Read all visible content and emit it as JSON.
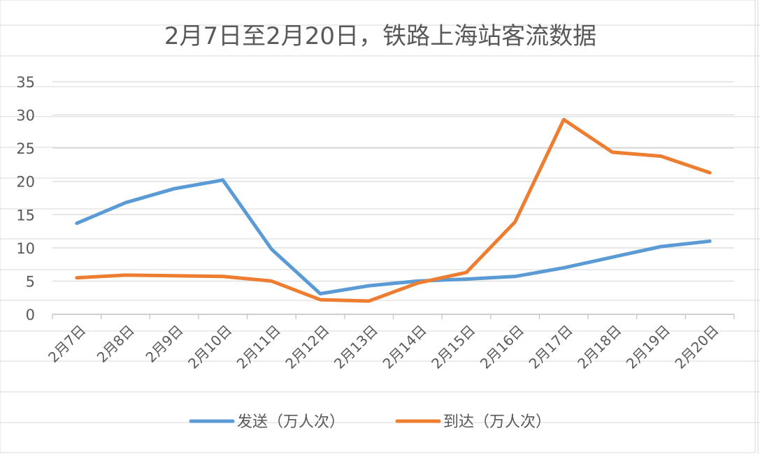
{
  "chart_data": {
    "type": "line",
    "title": "2月7日至2月20日，铁路上海站客流数据",
    "xlabel": "",
    "ylabel": "",
    "categories": [
      "2月7日",
      "2月8日",
      "2月9日",
      "2月10日",
      "2月11日",
      "2月12日",
      "2月13日",
      "2月14日",
      "2月15日",
      "2月16日",
      "2月17日",
      "2月18日",
      "2月19日",
      "2月20日"
    ],
    "ylim": [
      0,
      35
    ],
    "yticks": [
      0,
      5,
      10,
      15,
      20,
      25,
      30,
      35
    ],
    "grid": true,
    "legend": "bottom",
    "series": [
      {
        "name": "发送（万人次）",
        "color": "#5B9BD5",
        "values": [
          13.7,
          16.8,
          18.9,
          20.2,
          9.8,
          3.1,
          4.3,
          5.0,
          5.3,
          5.7,
          7.0,
          8.6,
          10.2,
          11.0
        ]
      },
      {
        "name": "到达（万人次）",
        "color": "#ED7D31",
        "values": [
          5.5,
          5.9,
          5.8,
          5.7,
          5.0,
          2.2,
          2.0,
          4.7,
          6.3,
          13.9,
          29.3,
          24.4,
          23.8,
          21.3
        ]
      }
    ]
  }
}
